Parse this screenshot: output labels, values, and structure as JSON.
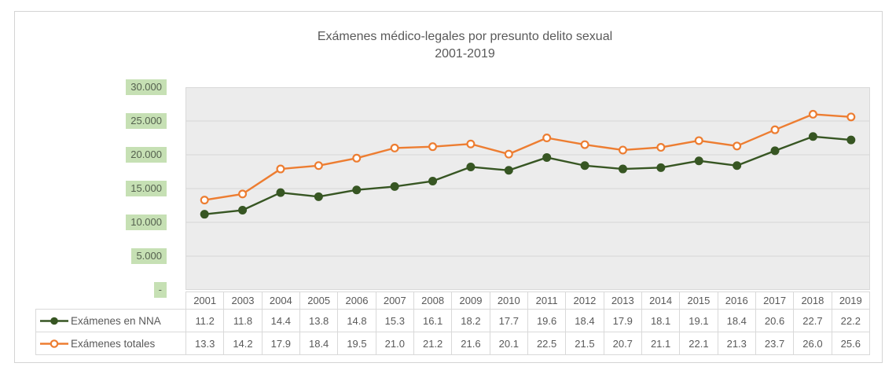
{
  "chart": {
    "title": "Exámenes médico-legales por presunto delito sexual",
    "subtitle": "2001-2019"
  },
  "chart_data": {
    "type": "line",
    "title": "Exámenes médico-legales por presunto delito sexual",
    "subtitle": "2001-2019",
    "categories": [
      "2001",
      "2003",
      "2004",
      "2005",
      "2006",
      "2007",
      "2008",
      "2009",
      "2010",
      "2011",
      "2012",
      "2013",
      "2014",
      "2015",
      "2016",
      "2017",
      "2018",
      "2019"
    ],
    "series": [
      {
        "name": "Exámenes en NNA",
        "values": [
          11.2,
          11.8,
          14.4,
          13.8,
          14.8,
          15.3,
          16.1,
          18.2,
          17.7,
          19.6,
          18.4,
          17.9,
          18.1,
          19.1,
          18.4,
          20.6,
          22.7,
          22.2
        ],
        "color": "#375623",
        "marker": "filled-circle"
      },
      {
        "name": "Exámenes totales",
        "values": [
          13.3,
          14.2,
          17.9,
          18.4,
          19.5,
          21.0,
          21.2,
          21.6,
          20.1,
          22.5,
          21.5,
          20.7,
          21.1,
          22.1,
          21.3,
          23.7,
          26.0,
          25.6
        ],
        "color": "#ED7D31",
        "marker": "open-circle"
      }
    ],
    "units_note": "table values in thousands; axis 0–30.000",
    "ylim": [
      0,
      30000
    ],
    "y_ticks": [
      {
        "label": "30.000",
        "value": 30000
      },
      {
        "label": "25.000",
        "value": 25000
      },
      {
        "label": "20.000",
        "value": 20000
      },
      {
        "label": "15.000",
        "value": 15000
      },
      {
        "label": "10.000",
        "value": 10000
      },
      {
        "label": "5.000",
        "value": 5000
      },
      {
        "label": "-",
        "value": 0
      }
    ],
    "grid": "horizontal",
    "legend_position": "data-table-left",
    "colors": {
      "plot_bg": "#ECECEC",
      "gridline": "#DADADA",
      "plot_border": "#D9D9D9",
      "ytick_highlight": "#C6E0B4",
      "text": "#595959",
      "table_border": "#D9D9D9"
    }
  }
}
